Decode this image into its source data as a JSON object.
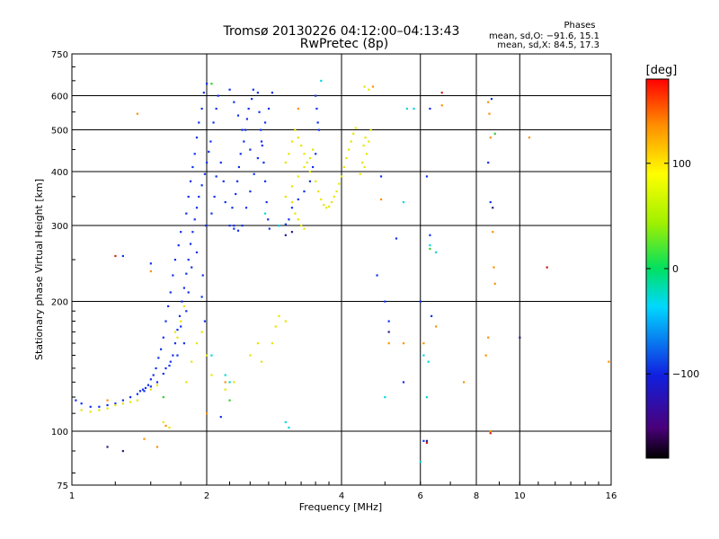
{
  "chart_data": {
    "type": "scatter",
    "title": "Tromsø 20130226 04:12:00–04:13:43",
    "subtitle": "RwPretec (8p)",
    "xlabel": "Frequency [MHz]",
    "ylabel": "Stationary phase Virtual Height [km]",
    "x_scale": "log2",
    "y_scale": "log",
    "xlim": [
      1,
      16
    ],
    "ylim": [
      75,
      750
    ],
    "x_ticks": [
      1,
      2,
      4,
      6,
      8,
      10,
      16
    ],
    "x_tick_labels": [
      "1",
      "2",
      "4",
      "6",
      "8",
      "10",
      "16"
    ],
    "y_ticks": [
      75,
      100,
      200,
      300,
      400,
      500,
      600,
      750
    ],
    "y_tick_labels": [
      "75",
      "100",
      "200",
      "300",
      "400",
      "500",
      "600",
      "750"
    ],
    "grid": true,
    "legend": {
      "title": "Phases",
      "lines": [
        "mean, sd,O: −91.6, 15.1",
        "mean, sd,X:  84.5, 17.3"
      ]
    },
    "colorbar": {
      "unit": "[deg]",
      "range": [
        -180,
        180
      ],
      "tick_labels": [
        "100",
        "0",
        "−100"
      ],
      "tick_values": [
        100,
        0,
        -100
      ]
    },
    "series": [
      {
        "color": "#1030f0",
        "points": [
          [
            1.02,
            118
          ],
          [
            1.05,
            116
          ],
          [
            1.1,
            114
          ],
          [
            1.15,
            114
          ],
          [
            1.2,
            115
          ],
          [
            1.25,
            116
          ],
          [
            1.3,
            118
          ],
          [
            1.35,
            120
          ],
          [
            1.4,
            122
          ],
          [
            1.45,
            124
          ],
          [
            1.5,
            127
          ],
          [
            1.55,
            130
          ],
          [
            1.6,
            136
          ],
          [
            1.65,
            142
          ],
          [
            1.68,
            150
          ],
          [
            1.7,
            160
          ],
          [
            1.72,
            172
          ],
          [
            1.74,
            185
          ],
          [
            1.76,
            200
          ],
          [
            1.78,
            215
          ],
          [
            1.8,
            232
          ],
          [
            1.82,
            250
          ],
          [
            1.84,
            272
          ],
          [
            1.86,
            290
          ],
          [
            1.88,
            310
          ],
          [
            1.9,
            330
          ],
          [
            1.92,
            350
          ],
          [
            1.95,
            372
          ],
          [
            1.98,
            395
          ],
          [
            2.0,
            420
          ],
          [
            2.02,
            445
          ],
          [
            2.04,
            470
          ],
          [
            2.07,
            520
          ],
          [
            2.1,
            560
          ],
          [
            2.12,
            600
          ],
          [
            1.75,
            175
          ],
          [
            1.78,
            160
          ],
          [
            1.8,
            190
          ],
          [
            1.82,
            210
          ],
          [
            1.85,
            240
          ],
          [
            1.9,
            260
          ],
          [
            1.95,
            205
          ],
          [
            1.98,
            180
          ],
          [
            1.72,
            150
          ],
          [
            1.66,
            145
          ],
          [
            1.62,
            140
          ],
          [
            1.96,
            230
          ],
          [
            1.99,
            300
          ],
          [
            2.05,
            320
          ],
          [
            2.08,
            350
          ],
          [
            2.1,
            390
          ],
          [
            2.15,
            420
          ],
          [
            2.18,
            380
          ],
          [
            2.2,
            340
          ],
          [
            2.25,
            300
          ],
          [
            2.3,
            295
          ],
          [
            2.35,
            292
          ],
          [
            2.4,
            300
          ],
          [
            2.45,
            330
          ],
          [
            2.5,
            360
          ],
          [
            2.55,
            395
          ],
          [
            2.6,
            430
          ],
          [
            2.65,
            470
          ],
          [
            2.7,
            520
          ],
          [
            2.75,
            560
          ],
          [
            2.8,
            610
          ],
          [
            2.9,
            300
          ],
          [
            3.0,
            302
          ],
          [
            3.05,
            310
          ],
          [
            3.1,
            330
          ],
          [
            3.2,
            345
          ],
          [
            3.3,
            360
          ],
          [
            3.4,
            380
          ],
          [
            3.45,
            410
          ],
          [
            3.5,
            440
          ],
          [
            2.25,
            620
          ],
          [
            2.3,
            580
          ],
          [
            2.35,
            540
          ],
          [
            2.4,
            500
          ],
          [
            2.5,
            450
          ],
          [
            2.6,
            610
          ],
          [
            2.62,
            550
          ],
          [
            2.64,
            500
          ],
          [
            2.66,
            460
          ],
          [
            2.68,
            420
          ],
          [
            2.7,
            380
          ],
          [
            2.72,
            340
          ],
          [
            2.74,
            310
          ],
          [
            2.76,
            295
          ],
          [
            3.5,
            600
          ],
          [
            3.52,
            560
          ],
          [
            3.54,
            520
          ],
          [
            3.56,
            500
          ],
          [
            2.0,
            640
          ],
          [
            1.97,
            610
          ],
          [
            1.95,
            560
          ],
          [
            1.92,
            520
          ],
          [
            1.9,
            480
          ],
          [
            1.88,
            440
          ],
          [
            1.86,
            410
          ],
          [
            1.84,
            380
          ],
          [
            1.82,
            350
          ],
          [
            1.8,
            320
          ],
          [
            1.75,
            290
          ],
          [
            1.73,
            270
          ],
          [
            1.7,
            250
          ],
          [
            1.68,
            230
          ],
          [
            1.66,
            210
          ],
          [
            1.64,
            195
          ],
          [
            1.62,
            180
          ],
          [
            1.6,
            165
          ],
          [
            1.58,
            155
          ],
          [
            1.56,
            148
          ],
          [
            1.54,
            140
          ],
          [
            1.52,
            135
          ],
          [
            1.5,
            132
          ],
          [
            1.48,
            128
          ],
          [
            1.46,
            126
          ],
          [
            1.44,
            125
          ],
          [
            1.42,
            124
          ],
          [
            4.9,
            390
          ],
          [
            5.0,
            200
          ],
          [
            5.1,
            180
          ],
          [
            5.3,
            280
          ],
          [
            5.5,
            130
          ],
          [
            6.0,
            200
          ],
          [
            6.1,
            95
          ],
          [
            6.2,
            390
          ],
          [
            6.3,
            285
          ],
          [
            6.35,
            185
          ],
          [
            1.3,
            255
          ],
          [
            1.5,
            245
          ],
          [
            2.15,
            108
          ],
          [
            8.5,
            420
          ],
          [
            8.6,
            340
          ],
          [
            8.65,
            590
          ],
          [
            4.8,
            230
          ],
          [
            6.3,
            560
          ],
          [
            2.3,
            300
          ],
          [
            2.28,
            330
          ],
          [
            2.32,
            355
          ],
          [
            2.34,
            380
          ],
          [
            2.36,
            410
          ],
          [
            2.38,
            440
          ],
          [
            2.42,
            470
          ],
          [
            2.44,
            500
          ],
          [
            2.46,
            530
          ],
          [
            2.48,
            560
          ],
          [
            2.52,
            590
          ],
          [
            2.54,
            620
          ]
        ]
      },
      {
        "color": "#e6e600",
        "points": [
          [
            1.05,
            112
          ],
          [
            1.1,
            111
          ],
          [
            1.15,
            112
          ],
          [
            1.2,
            113
          ],
          [
            1.25,
            115
          ],
          [
            1.3,
            116
          ],
          [
            1.35,
            117
          ],
          [
            1.4,
            118
          ],
          [
            1.5,
            125
          ],
          [
            1.55,
            128
          ],
          [
            1.6,
            105
          ],
          [
            1.65,
            102
          ],
          [
            1.8,
            130
          ],
          [
            1.85,
            145
          ],
          [
            1.9,
            160
          ],
          [
            1.95,
            170
          ],
          [
            2.0,
            150
          ],
          [
            2.05,
            135
          ],
          [
            2.2,
            125
          ],
          [
            2.3,
            130
          ],
          [
            2.5,
            150
          ],
          [
            2.6,
            160
          ],
          [
            2.65,
            145
          ],
          [
            2.8,
            160
          ],
          [
            2.85,
            175
          ],
          [
            3.0,
            420
          ],
          [
            3.05,
            440
          ],
          [
            3.1,
            470
          ],
          [
            3.15,
            500
          ],
          [
            3.2,
            480
          ],
          [
            3.25,
            460
          ],
          [
            3.3,
            440
          ],
          [
            3.35,
            420
          ],
          [
            3.4,
            400
          ],
          [
            3.5,
            380
          ],
          [
            3.55,
            360
          ],
          [
            3.6,
            345
          ],
          [
            3.65,
            335
          ],
          [
            3.7,
            330
          ],
          [
            3.75,
            332
          ],
          [
            3.8,
            340
          ],
          [
            3.85,
            350
          ],
          [
            3.9,
            360
          ],
          [
            3.95,
            375
          ],
          [
            4.0,
            390
          ],
          [
            4.05,
            410
          ],
          [
            4.1,
            430
          ],
          [
            4.15,
            450
          ],
          [
            4.2,
            470
          ],
          [
            4.25,
            490
          ],
          [
            4.3,
            505
          ],
          [
            3.0,
            350
          ],
          [
            3.1,
            370
          ],
          [
            3.2,
            390
          ],
          [
            3.3,
            410
          ],
          [
            3.4,
            430
          ],
          [
            3.45,
            450
          ],
          [
            4.5,
            410
          ],
          [
            4.55,
            440
          ],
          [
            4.6,
            470
          ],
          [
            4.65,
            500
          ],
          [
            4.5,
            630
          ],
          [
            4.6,
            620
          ],
          [
            3.0,
            180
          ],
          [
            2.9,
            185
          ],
          [
            1.7,
            170
          ],
          [
            1.75,
            180
          ],
          [
            1.78,
            195
          ],
          [
            1.72,
            165
          ],
          [
            3.1,
            340
          ],
          [
            3.15,
            320
          ],
          [
            3.2,
            310
          ],
          [
            3.25,
            300
          ],
          [
            3.3,
            295
          ],
          [
            4.4,
            395
          ],
          [
            4.45,
            420
          ],
          [
            4.48,
            460
          ],
          [
            4.52,
            480
          ]
        ]
      },
      {
        "color": "#00d8e0",
        "points": [
          [
            2.9,
            300
          ],
          [
            3.0,
            105
          ],
          [
            3.05,
            102
          ],
          [
            5.0,
            120
          ],
          [
            5.5,
            340
          ],
          [
            5.6,
            560
          ],
          [
            6.0,
            85
          ],
          [
            6.1,
            150
          ],
          [
            6.2,
            120
          ],
          [
            6.25,
            145
          ],
          [
            6.3,
            270
          ],
          [
            3.6,
            650
          ],
          [
            2.7,
            320
          ],
          [
            2.2,
            135
          ],
          [
            2.25,
            130
          ],
          [
            5.8,
            560
          ],
          [
            6.5,
            260
          ],
          [
            2.05,
            150
          ]
        ]
      },
      {
        "color": "#30d030",
        "points": [
          [
            2.05,
            640
          ],
          [
            8.8,
            490
          ],
          [
            6.3,
            265
          ],
          [
            1.6,
            120
          ],
          [
            2.25,
            118
          ]
        ]
      },
      {
        "color": "#ff9000",
        "points": [
          [
            1.2,
            118
          ],
          [
            1.4,
            545
          ],
          [
            1.45,
            96
          ],
          [
            1.55,
            92
          ],
          [
            1.62,
            103
          ],
          [
            2.0,
            110
          ],
          [
            3.2,
            560
          ],
          [
            4.7,
            630
          ],
          [
            4.9,
            345
          ],
          [
            5.1,
            160
          ],
          [
            5.5,
            160
          ],
          [
            6.1,
            160
          ],
          [
            6.5,
            175
          ],
          [
            6.7,
            570
          ],
          [
            7.5,
            130
          ],
          [
            8.5,
            580
          ],
          [
            8.55,
            545
          ],
          [
            8.6,
            480
          ],
          [
            8.7,
            290
          ],
          [
            8.75,
            240
          ],
          [
            8.8,
            220
          ],
          [
            8.6,
            100
          ],
          [
            10.5,
            480
          ],
          [
            11.5,
            240
          ],
          [
            15.8,
            145
          ],
          [
            1.5,
            235
          ],
          [
            2.2,
            130
          ],
          [
            8.4,
            150
          ],
          [
            8.5,
            165
          ]
        ]
      },
      {
        "color": "#d02020",
        "points": [
          [
            6.7,
            610
          ],
          [
            8.6,
            99
          ],
          [
            11.5,
            240
          ],
          [
            1.25,
            255
          ],
          [
            6.2,
            94
          ]
        ]
      },
      {
        "color": "#202080",
        "points": [
          [
            1.3,
            90
          ],
          [
            1.2,
            92
          ],
          [
            6.2,
            95
          ],
          [
            10.0,
            165
          ],
          [
            8.7,
            330
          ],
          [
            5.1,
            170
          ],
          [
            3.1,
            290
          ],
          [
            3.0,
            285
          ]
        ]
      }
    ]
  }
}
